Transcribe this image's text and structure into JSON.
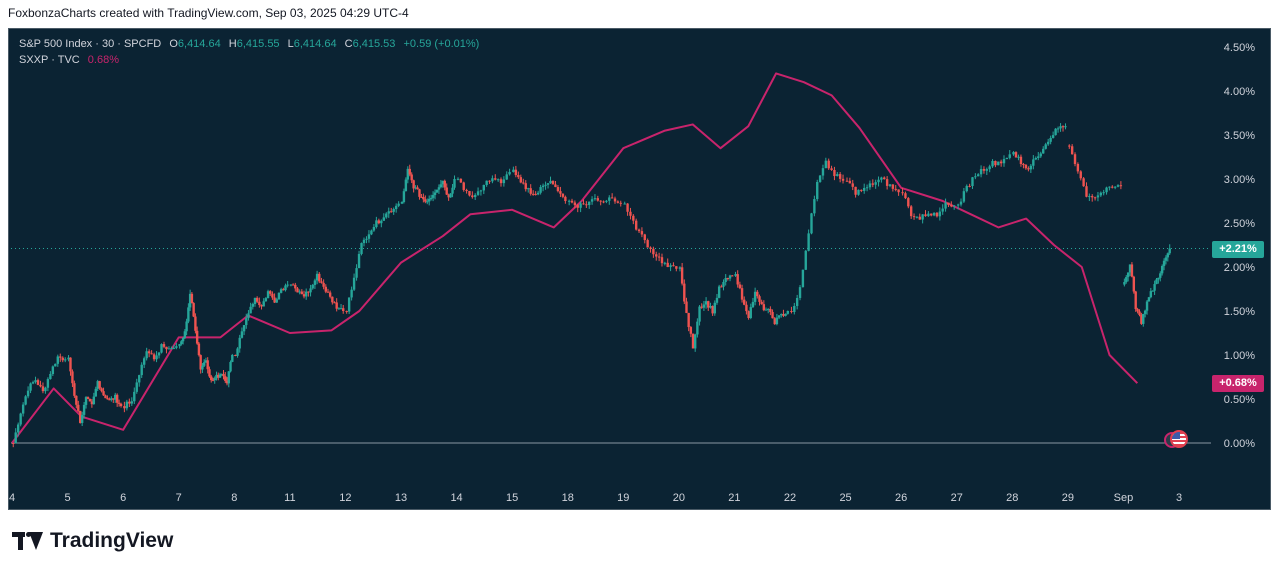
{
  "header": {
    "caption": "FoxbonzaCharts created with TradingView.com, Sep 03, 2025 04:29 UTC-4"
  },
  "legend": {
    "main_symbol": "S&P 500 Index · 30 · SPCFD",
    "o_label": "O",
    "o_value": "6,414.64",
    "h_label": "H",
    "h_value": "6,415.55",
    "l_label": "L",
    "l_value": "6,414.64",
    "c_label": "C",
    "c_value": "6,415.53",
    "change": "+0.59 (+0.01%)",
    "compare_symbol": "SXXP · TVC",
    "compare_value": "0.68%"
  },
  "price_badges": {
    "spx": "+2.21%",
    "sxxp": "+0.68%"
  },
  "brand": {
    "name": "TradingView"
  },
  "colors": {
    "background": "#0b2333",
    "up": "#26a69a",
    "down": "#ef5350",
    "compare_line": "#c8246c",
    "axis_text": "#d1d4dc"
  },
  "chart_data": {
    "type": "candlestick_with_compare_line",
    "y_unit": "%",
    "ylim": [
      -0.2,
      4.62
    ],
    "y_ticks": [
      "4.50%",
      "4.00%",
      "3.50%",
      "3.00%",
      "2.50%",
      "2.00%",
      "1.50%",
      "1.00%",
      "0.50%",
      "0.00%"
    ],
    "y_tick_values": [
      4.5,
      4.0,
      3.5,
      3.0,
      2.5,
      2.0,
      1.5,
      1.0,
      0.5,
      0.0
    ],
    "x_ticks": [
      "4",
      "5",
      "6",
      "7",
      "8",
      "11",
      "12",
      "13",
      "14",
      "15",
      "18",
      "19",
      "20",
      "21",
      "22",
      "25",
      "26",
      "27",
      "28",
      "29",
      "Sep",
      "3"
    ],
    "zero_line": 0.0,
    "last_value_line": 2.21,
    "series": [
      {
        "name": "S&P 500 Index · 30 · SPCFD",
        "kind": "candles",
        "segments": [
          {
            "day": "4",
            "path": [
              0.0,
              0.35,
              0.62,
              0.72,
              0.58,
              0.8,
              0.98,
              0.95
            ]
          },
          {
            "day": "5",
            "path": [
              0.95,
              0.55,
              0.25,
              0.5,
              0.42,
              0.7,
              0.55,
              0.48,
              0.52,
              0.42
            ]
          },
          {
            "day": "6",
            "path": [
              0.42,
              0.5,
              0.8,
              1.05,
              0.95,
              1.1,
              1.05,
              1.1
            ]
          },
          {
            "day": "7",
            "path": [
              1.1,
              1.25,
              1.7,
              1.3,
              0.85,
              0.95,
              0.7,
              0.75,
              0.8,
              0.7,
              1.0
            ]
          },
          {
            "day": "8",
            "path": [
              1.0,
              1.25,
              1.5,
              1.65,
              1.55,
              1.72,
              1.62,
              1.75,
              1.8
            ]
          },
          {
            "day": "11",
            "path": [
              1.8,
              1.72,
              1.68,
              1.75,
              1.9,
              1.78,
              1.65,
              1.55,
              1.5
            ]
          },
          {
            "day": "12",
            "path": [
              1.5,
              1.9,
              2.25,
              2.4,
              2.5,
              2.58,
              2.65,
              2.72
            ]
          },
          {
            "day": "13",
            "path": [
              2.72,
              3.1,
              2.92,
              2.82,
              2.75,
              2.8,
              2.9,
              2.98,
              2.78,
              3.0
            ]
          },
          {
            "day": "14",
            "path": [
              3.0,
              2.85,
              2.8,
              2.95,
              3.02,
              2.95,
              3.08
            ]
          },
          {
            "day": "15",
            "path": [
              3.08,
              2.95,
              2.88,
              2.82,
              2.92,
              3.0,
              2.85,
              2.75
            ]
          },
          {
            "day": "18",
            "path": [
              2.75,
              2.7,
              2.72,
              2.78,
              2.75,
              2.8,
              2.72
            ]
          },
          {
            "day": "19",
            "path": [
              2.72,
              2.5,
              2.35,
              2.2,
              2.1,
              2.0,
              1.98
            ]
          },
          {
            "day": "20",
            "path": [
              1.98,
              1.45,
              1.1,
              1.55,
              1.6,
              1.5,
              1.75,
              1.85,
              1.9
            ]
          },
          {
            "day": "21",
            "path": [
              1.9,
              1.65,
              1.45,
              1.7,
              1.55,
              1.5,
              1.38,
              1.45,
              1.5
            ]
          },
          {
            "day": "22",
            "path": [
              1.5,
              1.75,
              2.4,
              2.95,
              3.18,
              3.05,
              2.98
            ]
          },
          {
            "day": "25",
            "path": [
              2.98,
              2.85,
              2.88,
              2.95,
              3.0,
              2.92,
              2.85
            ]
          },
          {
            "day": "26",
            "path": [
              2.85,
              2.6,
              2.55,
              2.62,
              2.58,
              2.75,
              2.7
            ]
          },
          {
            "day": "27",
            "path": [
              2.7,
              2.9,
              3.05,
              3.12,
              3.18,
              3.2,
              3.28
            ]
          },
          {
            "day": "28",
            "path": [
              3.28,
              3.2,
              3.1,
              3.25,
              3.35,
              3.48,
              3.58,
              3.6
            ]
          },
          {
            "day": "29",
            "path": [
              3.38,
              3.1,
              2.82,
              2.8,
              2.86,
              2.9,
              2.92
            ]
          },
          {
            "day": "Sep",
            "path": [
              1.8,
              2.05,
              1.55,
              1.38,
              1.6,
              1.75,
              1.9,
              2.05,
              2.21
            ]
          }
        ]
      },
      {
        "name": "SXXP · TVC",
        "kind": "line",
        "points": [
          {
            "day": "4",
            "v": 0.0
          },
          {
            "day": "5",
            "v": 0.62
          },
          {
            "day": "5",
            "v": 0.3
          },
          {
            "day": "6",
            "v": 0.15
          },
          {
            "day": "7",
            "v": 1.2
          },
          {
            "day": "8",
            "v": 1.2
          },
          {
            "day": "8",
            "v": 1.45
          },
          {
            "day": "11",
            "v": 1.25
          },
          {
            "day": "12",
            "v": 1.28
          },
          {
            "day": "12",
            "v": 1.5
          },
          {
            "day": "13",
            "v": 2.05
          },
          {
            "day": "14",
            "v": 2.35
          },
          {
            "day": "14",
            "v": 2.6
          },
          {
            "day": "15",
            "v": 2.65
          },
          {
            "day": "18",
            "v": 2.45
          },
          {
            "day": "18",
            "v": 2.75
          },
          {
            "day": "19",
            "v": 3.35
          },
          {
            "day": "20",
            "v": 3.55
          },
          {
            "day": "20",
            "v": 3.62
          },
          {
            "day": "21",
            "v": 3.35
          },
          {
            "day": "21",
            "v": 3.6
          },
          {
            "day": "22",
            "v": 4.2
          },
          {
            "day": "22",
            "v": 4.1
          },
          {
            "day": "25",
            "v": 3.95
          },
          {
            "day": "25",
            "v": 3.58
          },
          {
            "day": "26",
            "v": 2.9
          },
          {
            "day": "27",
            "v": 2.75
          },
          {
            "day": "27",
            "v": 2.6
          },
          {
            "day": "28",
            "v": 2.45
          },
          {
            "day": "28",
            "v": 2.55
          },
          {
            "day": "29",
            "v": 2.25
          },
          {
            "day": "29",
            "v": 2.0
          },
          {
            "day": "Sep",
            "v": 1.0
          },
          {
            "day": "Sep",
            "v": 0.68
          }
        ]
      }
    ]
  }
}
